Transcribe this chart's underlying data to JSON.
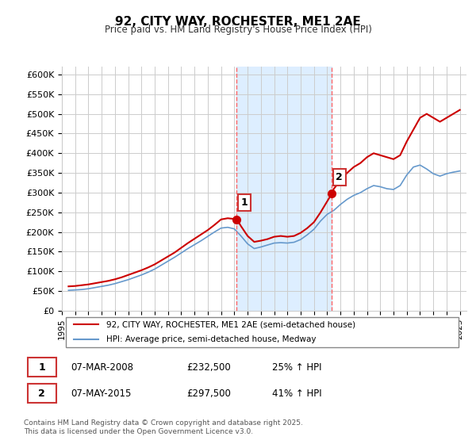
{
  "title": "92, CITY WAY, ROCHESTER, ME1 2AE",
  "subtitle": "Price paid vs. HM Land Registry's House Price Index (HPI)",
  "ylabel": "",
  "ylim": [
    0,
    620000
  ],
  "yticks": [
    0,
    50000,
    100000,
    150000,
    200000,
    250000,
    300000,
    350000,
    400000,
    450000,
    500000,
    550000,
    600000
  ],
  "ytick_labels": [
    "£0",
    "£50K",
    "£100K",
    "£150K",
    "£200K",
    "£250K",
    "£300K",
    "£350K",
    "£400K",
    "£450K",
    "£500K",
    "£550K",
    "£600K"
  ],
  "xlim_start": 1995.0,
  "xlim_end": 2025.5,
  "xticks": [
    1995,
    1996,
    1997,
    1998,
    1999,
    2000,
    2001,
    2002,
    2003,
    2004,
    2005,
    2006,
    2007,
    2008,
    2009,
    2010,
    2011,
    2012,
    2013,
    2014,
    2015,
    2016,
    2017,
    2018,
    2019,
    2020,
    2021,
    2022,
    2023,
    2024,
    2025
  ],
  "line1_color": "#cc0000",
  "line2_color": "#6699cc",
  "shade_color": "#ddeeff",
  "vline_color": "#ff6666",
  "marker_color1": "#cc0000",
  "marker_color2": "#cc0000",
  "transaction1_x": 2008.18,
  "transaction1_y": 232500,
  "transaction1_label": "1",
  "transaction2_x": 2015.35,
  "transaction2_y": 297500,
  "transaction2_label": "2",
  "legend_line1": "92, CITY WAY, ROCHESTER, ME1 2AE (semi-detached house)",
  "legend_line2": "HPI: Average price, semi-detached house, Medway",
  "table_row1": [
    "1",
    "07-MAR-2008",
    "£232,500",
    "25% ↑ HPI"
  ],
  "table_row2": [
    "2",
    "07-MAY-2015",
    "£297,500",
    "41% ↑ HPI"
  ],
  "footer": "Contains HM Land Registry data © Crown copyright and database right 2025.\nThis data is licensed under the Open Government Licence v3.0.",
  "red_line_x": [
    1995.5,
    1996.0,
    1996.5,
    1997.0,
    1997.5,
    1998.0,
    1998.5,
    1999.0,
    1999.5,
    2000.0,
    2000.5,
    2001.0,
    2001.5,
    2002.0,
    2002.5,
    2003.0,
    2003.5,
    2004.0,
    2004.5,
    2005.0,
    2005.5,
    2006.0,
    2006.5,
    2007.0,
    2007.5,
    2008.18,
    2008.5,
    2009.0,
    2009.5,
    2010.0,
    2010.5,
    2011.0,
    2011.5,
    2012.0,
    2012.5,
    2013.0,
    2013.5,
    2014.0,
    2014.5,
    2015.35,
    2015.5,
    2016.0,
    2016.5,
    2017.0,
    2017.5,
    2018.0,
    2018.5,
    2019.0,
    2019.5,
    2020.0,
    2020.5,
    2021.0,
    2021.5,
    2022.0,
    2022.5,
    2023.0,
    2023.5,
    2024.0,
    2024.5,
    2025.0
  ],
  "red_line_y": [
    62000,
    63000,
    65000,
    67000,
    70000,
    73000,
    76000,
    80000,
    85000,
    91000,
    97000,
    103000,
    110000,
    118000,
    128000,
    138000,
    148000,
    160000,
    172000,
    183000,
    194000,
    205000,
    218000,
    232000,
    235000,
    232500,
    215000,
    190000,
    175000,
    178000,
    182000,
    188000,
    190000,
    188000,
    190000,
    198000,
    210000,
    225000,
    250000,
    297500,
    310000,
    330000,
    350000,
    365000,
    375000,
    390000,
    400000,
    395000,
    390000,
    385000,
    395000,
    430000,
    460000,
    490000,
    500000,
    490000,
    480000,
    490000,
    500000,
    510000
  ],
  "blue_line_x": [
    1995.5,
    1996.0,
    1996.5,
    1997.0,
    1997.5,
    1998.0,
    1998.5,
    1999.0,
    1999.5,
    2000.0,
    2000.5,
    2001.0,
    2001.5,
    2002.0,
    2002.5,
    2003.0,
    2003.5,
    2004.0,
    2004.5,
    2005.0,
    2005.5,
    2006.0,
    2006.5,
    2007.0,
    2007.5,
    2008.0,
    2008.5,
    2009.0,
    2009.5,
    2010.0,
    2010.5,
    2011.0,
    2011.5,
    2012.0,
    2012.5,
    2013.0,
    2013.5,
    2014.0,
    2014.5,
    2015.0,
    2015.5,
    2016.0,
    2016.5,
    2017.0,
    2017.5,
    2018.0,
    2018.5,
    2019.0,
    2019.5,
    2020.0,
    2020.5,
    2021.0,
    2021.5,
    2022.0,
    2022.5,
    2023.0,
    2023.5,
    2024.0,
    2024.5,
    2025.0
  ],
  "blue_line_y": [
    52000,
    53000,
    54000,
    56000,
    59000,
    62000,
    65000,
    69000,
    74000,
    79000,
    85000,
    91000,
    98000,
    106000,
    116000,
    126000,
    136000,
    147000,
    158000,
    168000,
    178000,
    189000,
    200000,
    210000,
    212000,
    208000,
    190000,
    170000,
    158000,
    162000,
    167000,
    172000,
    173000,
    172000,
    174000,
    181000,
    193000,
    207000,
    228000,
    245000,
    255000,
    270000,
    283000,
    293000,
    300000,
    310000,
    318000,
    315000,
    310000,
    308000,
    318000,
    345000,
    365000,
    370000,
    360000,
    348000,
    342000,
    348000,
    352000,
    355000
  ]
}
